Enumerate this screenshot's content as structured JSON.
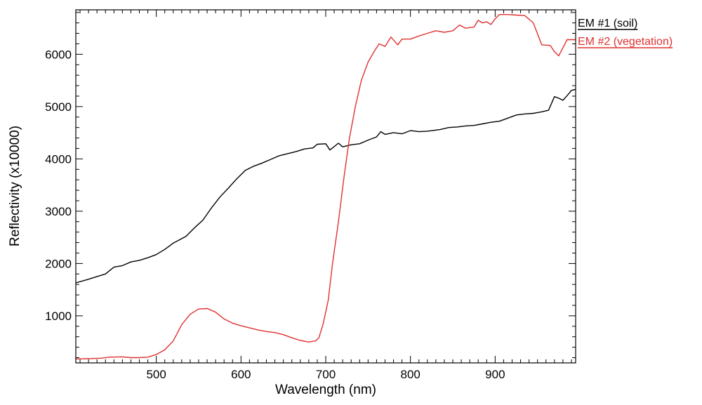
{
  "chart_data": {
    "type": "line",
    "title": "",
    "xlabel": "Wavelength (nm)",
    "ylabel": "Reflectivity (x10000)",
    "xlim": [
      405,
      995
    ],
    "ylim": [
      100,
      6850
    ],
    "xticks": [
      500,
      600,
      700,
      800,
      900
    ],
    "yticks": [
      1000,
      2000,
      3000,
      4000,
      5000,
      6000
    ],
    "grid": false,
    "legend_position": "top-right-outside",
    "series": [
      {
        "name": "EM #1 (soil)",
        "color": "#000000",
        "points": [
          [
            405,
            1630
          ],
          [
            420,
            1700
          ],
          [
            440,
            1800
          ],
          [
            450,
            1930
          ],
          [
            460,
            1960
          ],
          [
            470,
            2030
          ],
          [
            480,
            2060
          ],
          [
            490,
            2110
          ],
          [
            500,
            2170
          ],
          [
            510,
            2270
          ],
          [
            520,
            2390
          ],
          [
            535,
            2520
          ],
          [
            545,
            2680
          ],
          [
            555,
            2830
          ],
          [
            565,
            3060
          ],
          [
            575,
            3270
          ],
          [
            585,
            3440
          ],
          [
            595,
            3620
          ],
          [
            605,
            3780
          ],
          [
            615,
            3860
          ],
          [
            625,
            3920
          ],
          [
            635,
            3990
          ],
          [
            645,
            4060
          ],
          [
            655,
            4100
          ],
          [
            665,
            4140
          ],
          [
            675,
            4190
          ],
          [
            685,
            4210
          ],
          [
            690,
            4280
          ],
          [
            700,
            4290
          ],
          [
            705,
            4170
          ],
          [
            715,
            4300
          ],
          [
            720,
            4230
          ],
          [
            730,
            4270
          ],
          [
            740,
            4290
          ],
          [
            750,
            4360
          ],
          [
            760,
            4420
          ],
          [
            765,
            4520
          ],
          [
            770,
            4470
          ],
          [
            780,
            4500
          ],
          [
            790,
            4480
          ],
          [
            800,
            4540
          ],
          [
            810,
            4520
          ],
          [
            820,
            4530
          ],
          [
            835,
            4560
          ],
          [
            845,
            4600
          ],
          [
            855,
            4610
          ],
          [
            865,
            4630
          ],
          [
            875,
            4640
          ],
          [
            885,
            4670
          ],
          [
            895,
            4700
          ],
          [
            905,
            4720
          ],
          [
            915,
            4780
          ],
          [
            925,
            4840
          ],
          [
            935,
            4860
          ],
          [
            945,
            4870
          ],
          [
            955,
            4900
          ],
          [
            963,
            4930
          ],
          [
            970,
            5190
          ],
          [
            975,
            5160
          ],
          [
            980,
            5120
          ],
          [
            985,
            5210
          ],
          [
            990,
            5310
          ],
          [
            995,
            5330
          ]
        ]
      },
      {
        "name": "EM #2 (vegetation)",
        "color": "#e03030",
        "points": [
          [
            405,
            175
          ],
          [
            420,
            180
          ],
          [
            435,
            190
          ],
          [
            445,
            210
          ],
          [
            460,
            215
          ],
          [
            470,
            200
          ],
          [
            480,
            200
          ],
          [
            490,
            210
          ],
          [
            500,
            260
          ],
          [
            510,
            350
          ],
          [
            520,
            520
          ],
          [
            530,
            830
          ],
          [
            540,
            1030
          ],
          [
            550,
            1130
          ],
          [
            560,
            1140
          ],
          [
            570,
            1070
          ],
          [
            580,
            940
          ],
          [
            590,
            860
          ],
          [
            600,
            810
          ],
          [
            610,
            770
          ],
          [
            620,
            730
          ],
          [
            630,
            700
          ],
          [
            640,
            680
          ],
          [
            650,
            640
          ],
          [
            660,
            580
          ],
          [
            670,
            530
          ],
          [
            680,
            500
          ],
          [
            688,
            520
          ],
          [
            692,
            580
          ],
          [
            697,
            850
          ],
          [
            703,
            1300
          ],
          [
            708,
            2000
          ],
          [
            715,
            2800
          ],
          [
            722,
            3700
          ],
          [
            728,
            4400
          ],
          [
            735,
            5000
          ],
          [
            742,
            5500
          ],
          [
            750,
            5850
          ],
          [
            757,
            6050
          ],
          [
            763,
            6200
          ],
          [
            770,
            6150
          ],
          [
            777,
            6330
          ],
          [
            785,
            6180
          ],
          [
            790,
            6290
          ],
          [
            800,
            6290
          ],
          [
            810,
            6350
          ],
          [
            820,
            6400
          ],
          [
            830,
            6450
          ],
          [
            840,
            6420
          ],
          [
            850,
            6450
          ],
          [
            858,
            6560
          ],
          [
            865,
            6500
          ],
          [
            875,
            6520
          ],
          [
            880,
            6650
          ],
          [
            885,
            6600
          ],
          [
            890,
            6620
          ],
          [
            895,
            6570
          ],
          [
            900,
            6680
          ],
          [
            905,
            6760
          ],
          [
            915,
            6760
          ],
          [
            925,
            6750
          ],
          [
            935,
            6740
          ],
          [
            945,
            6600
          ],
          [
            955,
            6180
          ],
          [
            965,
            6170
          ],
          [
            970,
            6050
          ],
          [
            975,
            5970
          ],
          [
            985,
            6280
          ],
          [
            995,
            6280
          ]
        ]
      }
    ]
  }
}
